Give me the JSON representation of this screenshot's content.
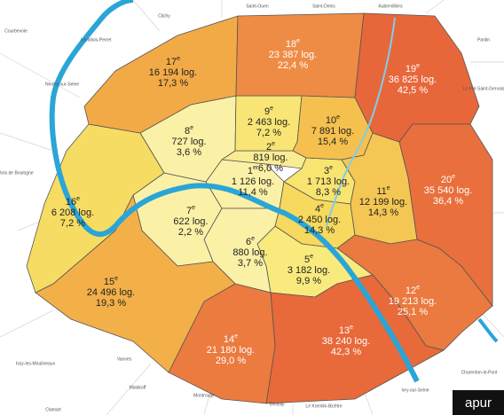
{
  "map": {
    "arrondissements": [
      {
        "number": "1",
        "suffix": "er",
        "dwellings": "1 126 log.",
        "share": "11,4 %",
        "color": "#fbf1a6",
        "label_color": "#222222"
      },
      {
        "number": "2",
        "suffix": "e",
        "dwellings": "819 log.",
        "share": "6,0 %",
        "color": "#f9ec92",
        "label_color": "#222222"
      },
      {
        "number": "3",
        "suffix": "e",
        "dwellings": "1 713 log.",
        "share": "8,3 %",
        "color": "#f8e471",
        "label_color": "#222222"
      },
      {
        "number": "4",
        "suffix": "e",
        "dwellings": "2 450 log.",
        "share": "14,3 %",
        "color": "#f6d95e",
        "label_color": "#222222"
      },
      {
        "number": "5",
        "suffix": "e",
        "dwellings": "3 182 log.",
        "share": "9,9 %",
        "color": "#f9ea7e",
        "label_color": "#222222"
      },
      {
        "number": "6",
        "suffix": "e",
        "dwellings": "880 log.",
        "share": "3,7 %",
        "color": "#fbf1a6",
        "label_color": "#222222"
      },
      {
        "number": "7",
        "suffix": "e",
        "dwellings": "622 log.",
        "share": "2,2 %",
        "color": "#fbf1a6",
        "label_color": "#222222"
      },
      {
        "number": "8",
        "suffix": "e",
        "dwellings": "727 log.",
        "share": "3,6 %",
        "color": "#fbf1a6",
        "label_color": "#222222"
      },
      {
        "number": "9",
        "suffix": "e",
        "dwellings": "2 463 log.",
        "share": "7,2 %",
        "color": "#f8e575",
        "label_color": "#222222"
      },
      {
        "number": "10",
        "suffix": "e",
        "dwellings": "7 891 log.",
        "share": "15,4 %",
        "color": "#f5c04e",
        "label_color": "#222222"
      },
      {
        "number": "11",
        "suffix": "e",
        "dwellings": "12 199 log.",
        "share": "14,3 %",
        "color": "#f4c653",
        "label_color": "#222222"
      },
      {
        "number": "12",
        "suffix": "e",
        "dwellings": "19 213 log.",
        "share": "25,1 %",
        "color": "#ea7a3f",
        "label_color": "#ffffff"
      },
      {
        "number": "13",
        "suffix": "e",
        "dwellings": "38 240 log.",
        "share": "42,3 %",
        "color": "#e8693a",
        "label_color": "#ffffff"
      },
      {
        "number": "14",
        "suffix": "e",
        "dwellings": "21 180 log.",
        "share": "29,0 %",
        "color": "#ec7b40",
        "label_color": "#ffffff"
      },
      {
        "number": "15",
        "suffix": "e",
        "dwellings": "24 496 log.",
        "share": "19,3 %",
        "color": "#f3b049",
        "label_color": "#222222"
      },
      {
        "number": "16",
        "suffix": "e",
        "dwellings": "6 208 log.",
        "share": "7,2 %",
        "color": "#f6dc62",
        "label_color": "#222222"
      },
      {
        "number": "17",
        "suffix": "e",
        "dwellings": "16 194 log.",
        "share": "17,3 %",
        "color": "#f2aa47",
        "label_color": "#222222"
      },
      {
        "number": "18",
        "suffix": "e",
        "dwellings": "23 387 log.",
        "share": "22,4 %",
        "color": "#ee8c45",
        "label_color": "#ffffff"
      },
      {
        "number": "19",
        "suffix": "e",
        "dwellings": "36 825 log.",
        "share": "42,5 %",
        "color": "#e8673a",
        "label_color": "#ffffff"
      },
      {
        "number": "20",
        "suffix": "e",
        "dwellings": "35 540 log.",
        "share": "36,4 %",
        "color": "#e9703c",
        "label_color": "#ffffff"
      }
    ],
    "communes": [
      "Saint-Ouen",
      "Saint-Denis",
      "Aubervilliers",
      "Pantin",
      "Clichy",
      "Levallois-Perret",
      "Courbevoie",
      "Neuilly-sur-Seine",
      "Le Pré-Saint-Gervais",
      "Bois de Boulogne",
      "Charenton-le-Pont",
      "Ivry-sur-Seine",
      "Le Kremlin-Bicêtre",
      "Gentilly",
      "Montrouge",
      "Malakoff",
      "Vanves",
      "Issy-les-Moulineaux",
      "Clamart"
    ],
    "logo": "apur"
  }
}
